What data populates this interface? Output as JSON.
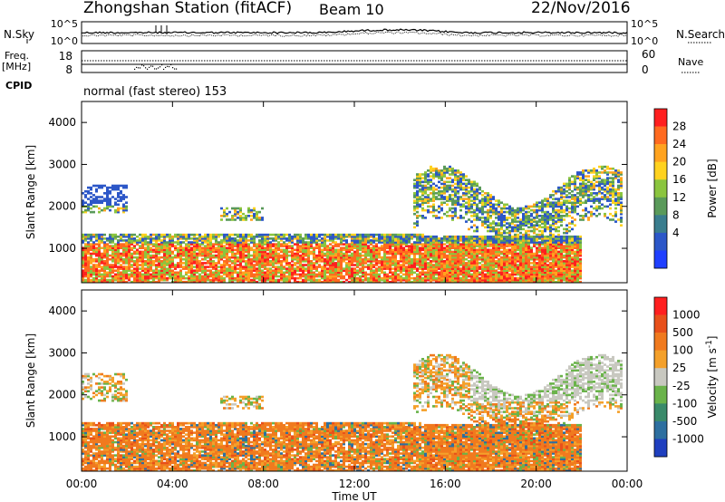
{
  "header": {
    "station": "Zhongshan Station (fitACF)",
    "beam": "Beam 10",
    "date": "22/Nov/2016"
  },
  "noise_panel": {
    "left_label": "N.Sky",
    "right_label": "N.Search",
    "left_ticks": [
      "10^5",
      "10^0"
    ],
    "right_ticks": [
      "10^5",
      "10^0"
    ]
  },
  "freq_panel": {
    "left_label_1": "Freq.",
    "left_label_2": "[MHz]",
    "right_label": "Nave",
    "left_ticks": [
      "18",
      "8"
    ],
    "right_ticks": [
      "60",
      "0"
    ]
  },
  "cpid": {
    "label": "CPID",
    "text": "normal (fast stereo) 153"
  },
  "chart_data": [
    {
      "type": "heatmap",
      "title": "",
      "xlabel": "Time UT",
      "ylabel": "Slant Range [km]",
      "x_ticks": [
        "00:00",
        "04:00",
        "08:00",
        "12:00",
        "16:00",
        "20:00",
        "00:00"
      ],
      "x_range_hours": [
        0,
        24
      ],
      "y_ticks": [
        1000,
        2000,
        3000,
        4000
      ],
      "ylim": [
        180,
        4500
      ],
      "colorbar": {
        "label": "Power [dB]",
        "ticks": [
          4,
          8,
          12,
          16,
          20,
          24,
          28
        ],
        "range": [
          0,
          30
        ],
        "colors": [
          "#1f3fff",
          "#2c57c8",
          "#3a7d8e",
          "#5a9a5a",
          "#8bc53f",
          "#ffd21f",
          "#ffa31f",
          "#ff6a1f",
          "#ff1f1f"
        ]
      }
    },
    {
      "type": "heatmap",
      "title": "",
      "xlabel": "Time UT",
      "ylabel": "Slant Range [km]",
      "x_ticks": [
        "00:00",
        "04:00",
        "08:00",
        "12:00",
        "16:00",
        "20:00",
        "00:00"
      ],
      "x_range_hours": [
        0,
        24
      ],
      "y_ticks": [
        1000,
        2000,
        3000,
        4000
      ],
      "ylim": [
        180,
        4500
      ],
      "colorbar": {
        "label": "Velocity [m s^-1]",
        "ticks": [
          "1000",
          "500",
          "100",
          "25",
          "-25",
          "-100",
          "-500",
          "-1000"
        ],
        "colors": [
          "#1f3fbf",
          "#2d6fa0",
          "#3a8a6a",
          "#6ab34a",
          "#c8c8c0",
          "#f4a02a",
          "#f07a1e",
          "#e8501a",
          "#ff1f1f"
        ]
      }
    }
  ]
}
